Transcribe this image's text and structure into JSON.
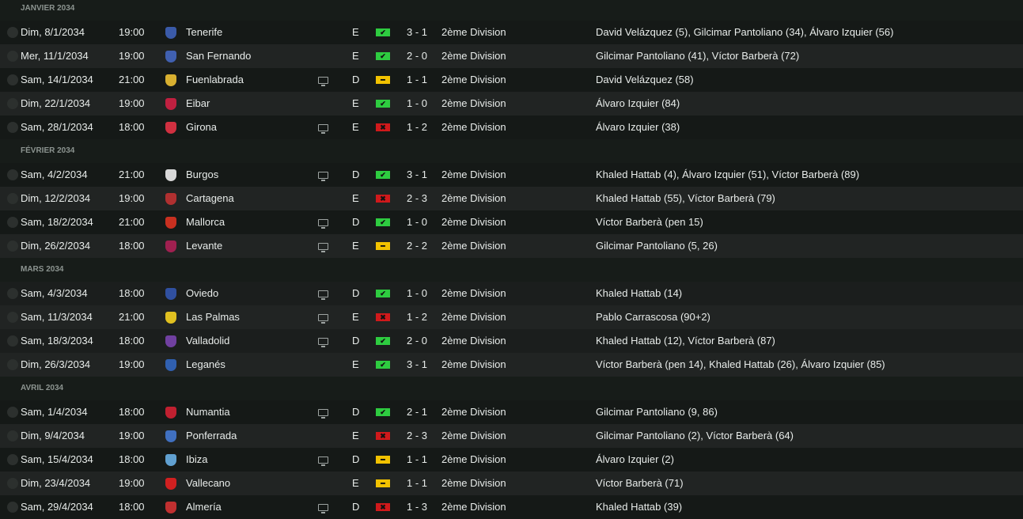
{
  "colors": {
    "win": "#2ecc40",
    "draw": "#f2c200",
    "loss": "#d0191b"
  },
  "months": [
    {
      "label": "JANVIER 2034",
      "matches": [
        {
          "date": "Dim, 8/1/2034",
          "time": "19:00",
          "team": "Tenerife",
          "crest": "#3a5aa8",
          "tv": false,
          "venue": "E",
          "result": "win",
          "score": "3 - 1",
          "competition": "2ème Division",
          "scorers": "David Velázquez (5), Gilcimar Pantoliano (34), Álvaro Izquier (56)"
        },
        {
          "date": "Mer, 11/1/2034",
          "time": "19:00",
          "team": "San Fernando",
          "crest": "#4060b0",
          "tv": false,
          "venue": "E",
          "result": "win",
          "score": "2 - 0",
          "competition": "2ème Division",
          "scorers": "Gilcimar Pantoliano (41), Víctor Barberà (72)"
        },
        {
          "date": "Sam, 14/1/2034",
          "time": "21:00",
          "team": "Fuenlabrada",
          "crest": "#d8b030",
          "tv": true,
          "venue": "D",
          "result": "draw",
          "score": "1 - 1",
          "competition": "2ème Division",
          "scorers": "David Velázquez (58)"
        },
        {
          "date": "Dim, 22/1/2034",
          "time": "19:00",
          "team": "Eibar",
          "crest": "#c02040",
          "tv": false,
          "venue": "E",
          "result": "win",
          "score": "1 - 0",
          "competition": "2ème Division",
          "scorers": "Álvaro Izquier (84)"
        },
        {
          "date": "Sam, 28/1/2034",
          "time": "18:00",
          "team": "Girona",
          "crest": "#d03040",
          "tv": true,
          "venue": "E",
          "result": "loss",
          "score": "1 - 2",
          "competition": "2ème Division",
          "scorers": "Álvaro Izquier (38)"
        }
      ]
    },
    {
      "label": "FÉVRIER 2034",
      "matches": [
        {
          "date": "Sam, 4/2/2034",
          "time": "21:00",
          "team": "Burgos",
          "crest": "#d8d8d8",
          "tv": true,
          "venue": "D",
          "result": "win",
          "score": "3 - 1",
          "competition": "2ème Division",
          "scorers": "Khaled Hattab (4), Álvaro Izquier (51), Víctor Barberà (89)"
        },
        {
          "date": "Dim, 12/2/2034",
          "time": "19:00",
          "team": "Cartagena",
          "crest": "#b03030",
          "tv": false,
          "venue": "E",
          "result": "loss",
          "score": "2 - 3",
          "competition": "2ème Division",
          "scorers": "Khaled Hattab (55), Víctor Barberà (79)"
        },
        {
          "date": "Sam, 18/2/2034",
          "time": "21:00",
          "team": "Mallorca",
          "crest": "#c83020",
          "tv": true,
          "venue": "D",
          "result": "win",
          "score": "1 - 0",
          "competition": "2ème Division",
          "scorers": "Víctor Barberà (pen 15)"
        },
        {
          "date": "Dim, 26/2/2034",
          "time": "18:00",
          "team": "Levante",
          "crest": "#a02050",
          "tv": true,
          "venue": "E",
          "result": "draw",
          "score": "2 - 2",
          "competition": "2ème Division",
          "scorers": "Gilcimar Pantoliano (5, 26)"
        }
      ]
    },
    {
      "label": "MARS 2034",
      "matches": [
        {
          "date": "Sam, 4/3/2034",
          "time": "18:00",
          "team": "Oviedo",
          "crest": "#3050a0",
          "tv": true,
          "venue": "D",
          "result": "win",
          "score": "1 - 0",
          "competition": "2ème Division",
          "scorers": "Khaled Hattab (14)"
        },
        {
          "date": "Sam, 11/3/2034",
          "time": "21:00",
          "team": "Las Palmas",
          "crest": "#e0c020",
          "tv": true,
          "venue": "E",
          "result": "loss",
          "score": "1 - 2",
          "competition": "2ème Division",
          "scorers": "Pablo Carrascosa (90+2)"
        },
        {
          "date": "Sam, 18/3/2034",
          "time": "18:00",
          "team": "Valladolid",
          "crest": "#7040a0",
          "tv": true,
          "venue": "D",
          "result": "win",
          "score": "2 - 0",
          "competition": "2ème Division",
          "scorers": "Khaled Hattab (12), Víctor Barberà (87)"
        },
        {
          "date": "Dim, 26/3/2034",
          "time": "19:00",
          "team": "Leganés",
          "crest": "#3060b0",
          "tv": false,
          "venue": "E",
          "result": "win",
          "score": "3 - 1",
          "competition": "2ème Division",
          "scorers": "Víctor Barberà (pen 14), Khaled Hattab (26), Álvaro Izquier (85)"
        }
      ]
    },
    {
      "label": "AVRIL 2034",
      "matches": [
        {
          "date": "Sam, 1/4/2034",
          "time": "18:00",
          "team": "Numantia",
          "crest": "#c02030",
          "tv": true,
          "venue": "D",
          "result": "win",
          "score": "2 - 1",
          "competition": "2ème Division",
          "scorers": "Gilcimar Pantoliano (9, 86)"
        },
        {
          "date": "Dim, 9/4/2034",
          "time": "19:00",
          "team": "Ponferrada",
          "crest": "#4070c0",
          "tv": false,
          "venue": "E",
          "result": "loss",
          "score": "2 - 3",
          "competition": "2ème Division",
          "scorers": "Gilcimar Pantoliano (2), Víctor Barberà (64)"
        },
        {
          "date": "Sam, 15/4/2034",
          "time": "18:00",
          "team": "Ibiza",
          "crest": "#60a0d0",
          "tv": true,
          "venue": "D",
          "result": "draw",
          "score": "1 - 1",
          "competition": "2ème Division",
          "scorers": "Álvaro Izquier (2)"
        },
        {
          "date": "Dim, 23/4/2034",
          "time": "19:00",
          "team": "Vallecano",
          "crest": "#d02020",
          "tv": false,
          "venue": "E",
          "result": "draw",
          "score": "1 - 1",
          "competition": "2ème Division",
          "scorers": "Víctor Barberà (71)"
        },
        {
          "date": "Sam, 29/4/2034",
          "time": "18:00",
          "team": "Almería",
          "crest": "#c03030",
          "tv": true,
          "venue": "D",
          "result": "loss",
          "score": "1 - 3",
          "competition": "2ème Division",
          "scorers": "Khaled Hattab (39)"
        }
      ]
    }
  ]
}
